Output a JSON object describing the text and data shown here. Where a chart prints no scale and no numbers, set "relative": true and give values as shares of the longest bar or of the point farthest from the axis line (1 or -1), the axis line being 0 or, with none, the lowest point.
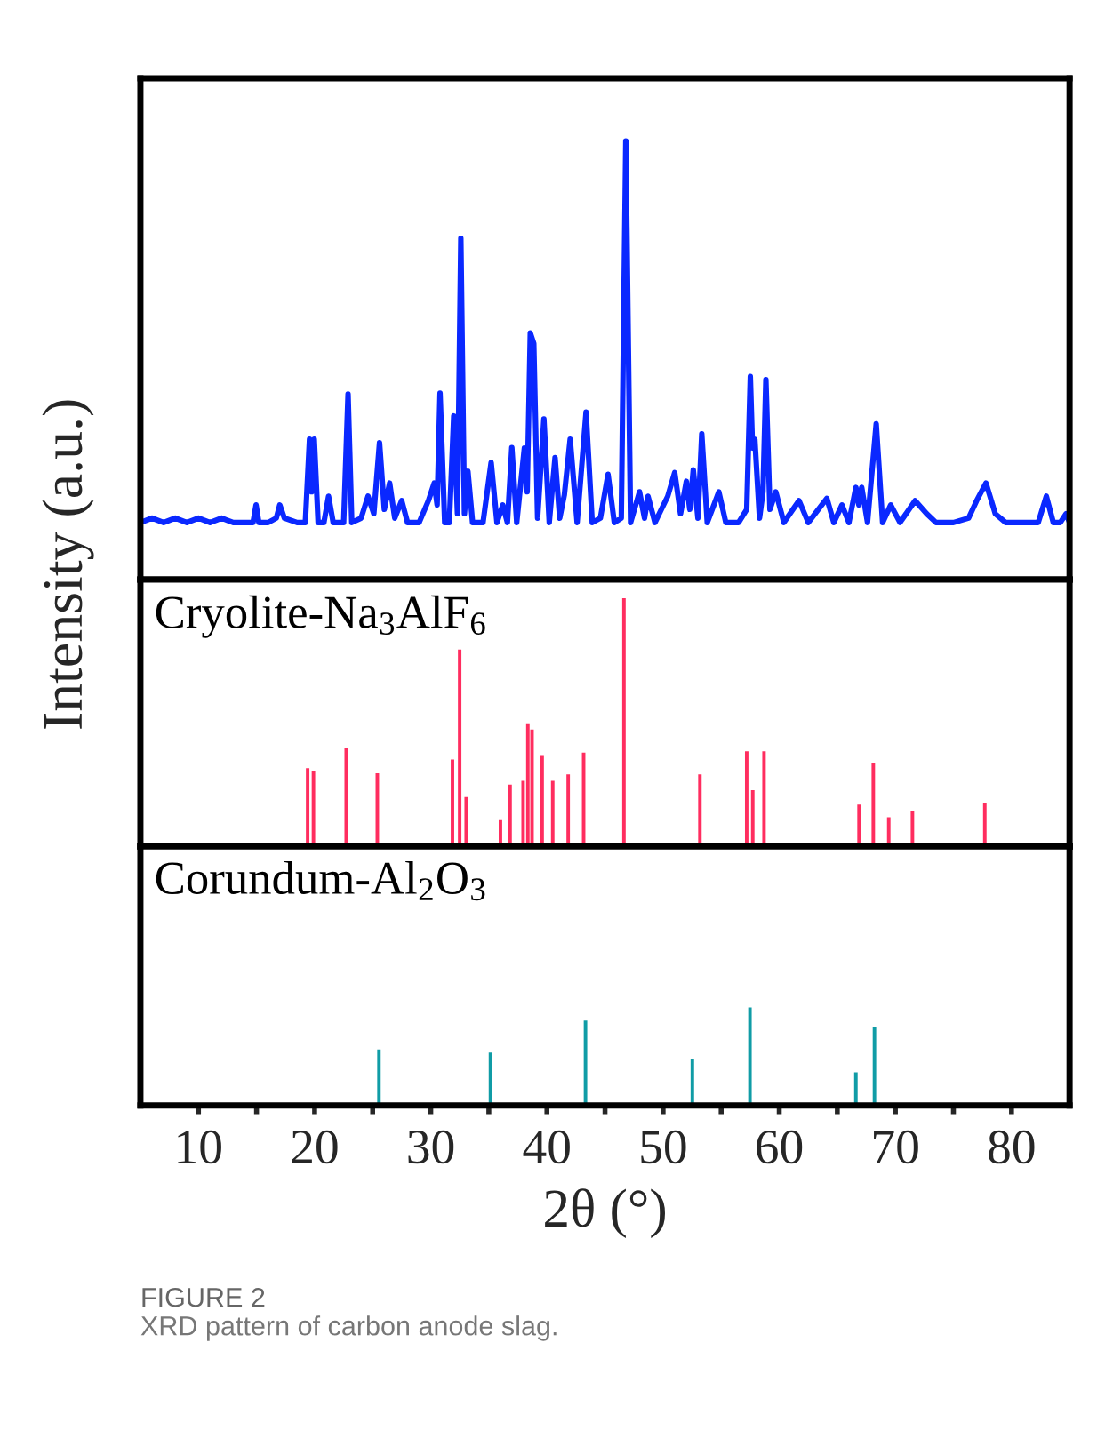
{
  "chart_data": [
    {
      "type": "line",
      "relative": true,
      "ylabel": "Intensity (a.u.)",
      "xlim": [
        5,
        85
      ],
      "tick_labels": false,
      "series": [
        {
          "color": "#0a28ff",
          "x": [
            5,
            6,
            7,
            8,
            9,
            10,
            11,
            12,
            13,
            14,
            14.7,
            14.96,
            15.2,
            16,
            16.7,
            17.0,
            17.4,
            18.5,
            19.2,
            19.56,
            19.75,
            19.97,
            20.3,
            20.8,
            21.2,
            21.6,
            22.5,
            22.88,
            23.2,
            24.0,
            24.6,
            25.1,
            25.59,
            26.0,
            26.46,
            26.9,
            27.5,
            28.0,
            29.0,
            29.8,
            30.3,
            30.55,
            30.8,
            31.2,
            31.6,
            31.98,
            32.3,
            32.59,
            32.9,
            33.2,
            33.6,
            34.5,
            35.2,
            35.7,
            36.2,
            36.6,
            36.98,
            37.4,
            38.06,
            38.3,
            38.57,
            38.87,
            39.2,
            39.74,
            40.2,
            40.7,
            41.1,
            41.5,
            42.0,
            42.6,
            43.37,
            43.9,
            44.6,
            45.26,
            45.8,
            46.4,
            46.79,
            47.2,
            47.97,
            48.4,
            48.7,
            49.3,
            50.4,
            51.0,
            51.5,
            52.0,
            52.3,
            52.6,
            53.0,
            53.33,
            53.8,
            54.8,
            55.4,
            56.5,
            57.2,
            57.51,
            57.7,
            57.9,
            58.3,
            58.6,
            58.85,
            59.2,
            59.7,
            60.4,
            61.7,
            62.5,
            64.1,
            64.7,
            65.4,
            66.0,
            66.6,
            66.85,
            67.1,
            67.6,
            68.35,
            68.9,
            69.6,
            70.4,
            71.7,
            72.7,
            73.5,
            75.0,
            76.3,
            77.0,
            77.8,
            78.6,
            79.5,
            81.0,
            82.3,
            83.0,
            83.6,
            84.2,
            84.7,
            85
          ],
          "values": [
            0.13,
            0.14,
            0.13,
            0.14,
            0.13,
            0.14,
            0.13,
            0.14,
            0.13,
            0.13,
            0.13,
            0.17,
            0.13,
            0.13,
            0.14,
            0.17,
            0.14,
            0.13,
            0.13,
            0.32,
            0.2,
            0.32,
            0.13,
            0.13,
            0.19,
            0.13,
            0.13,
            0.423,
            0.13,
            0.14,
            0.19,
            0.15,
            0.312,
            0.16,
            0.22,
            0.14,
            0.18,
            0.13,
            0.13,
            0.18,
            0.22,
            0.17,
            0.425,
            0.13,
            0.13,
            0.373,
            0.15,
            0.778,
            0.15,
            0.247,
            0.13,
            0.13,
            0.267,
            0.13,
            0.17,
            0.13,
            0.301,
            0.13,
            0.3,
            0.2,
            0.562,
            0.538,
            0.14,
            0.366,
            0.13,
            0.278,
            0.14,
            0.193,
            0.32,
            0.13,
            0.382,
            0.13,
            0.14,
            0.24,
            0.13,
            0.14,
            1.0,
            0.13,
            0.2,
            0.14,
            0.19,
            0.13,
            0.19,
            0.244,
            0.15,
            0.224,
            0.16,
            0.25,
            0.14,
            0.332,
            0.13,
            0.2,
            0.13,
            0.13,
            0.16,
            0.463,
            0.3,
            0.32,
            0.14,
            0.2,
            0.456,
            0.16,
            0.2,
            0.13,
            0.18,
            0.13,
            0.185,
            0.13,
            0.17,
            0.13,
            0.21,
            0.17,
            0.21,
            0.13,
            0.355,
            0.13,
            0.17,
            0.13,
            0.18,
            0.15,
            0.13,
            0.13,
            0.14,
            0.18,
            0.22,
            0.15,
            0.13,
            0.13,
            0.13,
            0.19,
            0.13,
            0.13,
            0.15,
            0.13
          ]
        }
      ]
    },
    {
      "type": "bar",
      "relative": true,
      "xlim": [
        5,
        85
      ],
      "tick_labels": false,
      "annotations": [
        "Cryolite-Na$_{3}$AlF$_{6}$"
      ],
      "series": [
        {
          "color": "#ff2d5f",
          "x": [
            19.4,
            19.9,
            22.72,
            25.4,
            31.87,
            32.49,
            33.05,
            36.0,
            36.83,
            37.95,
            38.36,
            38.72,
            39.59,
            40.5,
            41.83,
            43.16,
            46.63,
            53.17,
            57.2,
            57.72,
            58.69,
            66.87,
            68.1,
            69.43,
            71.47,
            77.7
          ],
          "values": [
            0.315,
            0.302,
            0.395,
            0.295,
            0.35,
            0.793,
            0.199,
            0.106,
            0.249,
            0.264,
            0.496,
            0.471,
            0.365,
            0.264,
            0.29,
            0.378,
            1.0,
            0.29,
            0.383,
            0.227,
            0.383,
            0.169,
            0.338,
            0.118,
            0.141,
            0.176
          ]
        }
      ]
    },
    {
      "type": "bar",
      "relative": true,
      "xlim": [
        5,
        85
      ],
      "tick_labels": "x",
      "xlabel": "2θ (°)",
      "xticks": [
        10,
        {
          "value": 15,
          "label": null
        },
        20,
        {
          "value": 25,
          "label": null
        },
        30,
        {
          "value": 35,
          "label": null
        },
        40,
        {
          "value": 45,
          "label": null
        },
        50,
        {
          "value": 55,
          "label": null
        },
        60,
        {
          "value": 65,
          "label": null
        },
        70,
        {
          "value": 75,
          "label": null
        },
        80
      ],
      "annotations": [
        "Corundum-Al$_{2}$O$_{3}$",
        "FIGURE 2",
        "XRD pattern of carbon anode slag."
      ],
      "series": [
        {
          "color": "#109ca6",
          "x": [
            25.54,
            35.14,
            43.32,
            52.52,
            57.48,
            66.6,
            68.2
          ],
          "values": [
            0.571,
            0.54,
            0.865,
            0.479,
            1.0,
            0.337,
            0.798
          ]
        }
      ]
    }
  ]
}
